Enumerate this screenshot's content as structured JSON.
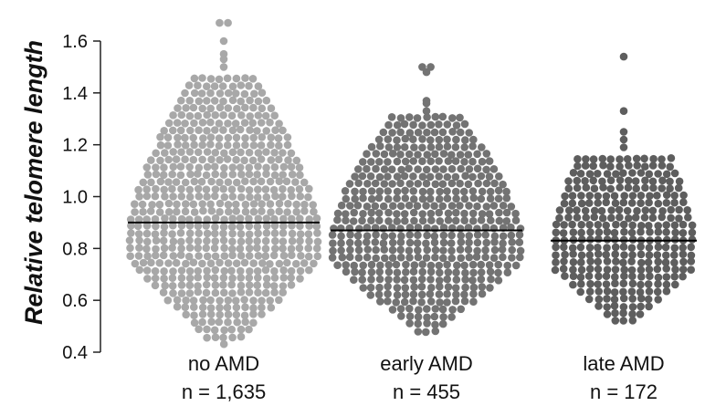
{
  "chart_data": {
    "type": "scatter",
    "subtype": "beeswarm",
    "title": "",
    "ylabel": "Relative telomere length",
    "xlabel": "",
    "ylim": [
      0.4,
      1.6
    ],
    "yticks": [
      0.4,
      0.6,
      0.8,
      1.0,
      1.2,
      1.4,
      1.6
    ],
    "ytick_labels": [
      "0.4",
      "0.6",
      "0.8",
      "1.0",
      "1.2",
      "1.4",
      "1.6"
    ],
    "grid": false,
    "legend": "none",
    "groups": [
      {
        "label": "no AMD",
        "n_label": "n = 1,635",
        "n": 1635,
        "median": 0.9,
        "color": "#a8a8a8",
        "y_min": 0.43,
        "y_max": 1.67,
        "top_outliers": [
          1.67,
          1.67,
          1.6,
          1.55,
          1.53,
          1.5
        ]
      },
      {
        "label": "early AMD",
        "n_label": "n = 455",
        "n": 455,
        "median": 0.87,
        "color": "#737373",
        "y_min": 0.48,
        "y_max": 1.5,
        "top_outliers": [
          1.5,
          1.5,
          1.48,
          1.37,
          1.36,
          1.33
        ]
      },
      {
        "label": "late AMD",
        "n_label": "n = 172",
        "n": 172,
        "median": 0.83,
        "color": "#5e5e5e",
        "y_min": 0.52,
        "y_max": 1.54,
        "top_outliers": [
          1.54,
          1.33,
          1.25,
          1.22,
          1.19
        ]
      }
    ],
    "colors": {
      "axis": "#222222",
      "median_line": "#000000"
    }
  }
}
